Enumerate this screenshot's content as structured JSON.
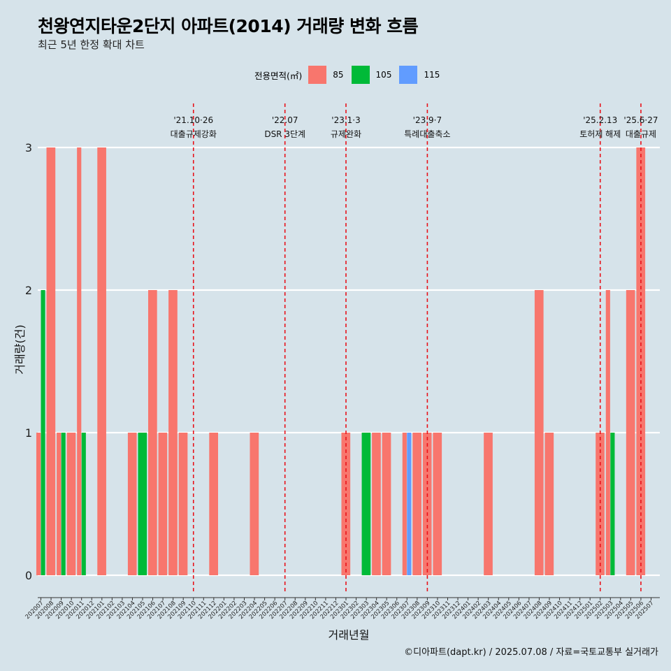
{
  "title": "천왕연지타운2단지 아파트(2014) 거래량 변화 흐름",
  "subtitle": "최근 5년 한정 확대 차트",
  "credit": "©디아파트(dapt.kr) / 2025.07.08 / 자료=국토교통부 실거래가",
  "legend": {
    "title": "전용면적(㎡)",
    "items": [
      {
        "label": "85",
        "color": "#f8766d"
      },
      {
        "label": "105",
        "color": "#00ba38"
      },
      {
        "label": "115",
        "color": "#619cff"
      }
    ]
  },
  "chart_data": {
    "type": "bar",
    "stacking": "dodge",
    "xlabel": "거래년월",
    "ylabel": "거래량(건)",
    "ylim": [
      0,
      3
    ],
    "yticks": [
      0,
      1,
      2,
      3
    ],
    "grid": "horizontal",
    "legend_position": "top",
    "categories": [
      "202007",
      "202008",
      "202009",
      "202010",
      "202011",
      "202012",
      "202101",
      "202102",
      "202103",
      "202104",
      "202105",
      "202106",
      "202107",
      "202108",
      "202109",
      "202110",
      "202111",
      "202112",
      "202201",
      "202202",
      "202203",
      "202204",
      "202205",
      "202206",
      "202207",
      "202208",
      "202209",
      "202210",
      "202211",
      "202212",
      "202301",
      "202302",
      "202303",
      "202304",
      "202305",
      "202306",
      "202307",
      "202308",
      "202309",
      "202310",
      "202311",
      "202312",
      "202401",
      "202402",
      "202403",
      "202404",
      "202405",
      "202406",
      "202407",
      "202408",
      "202409",
      "202410",
      "202411",
      "202412",
      "202501",
      "202502",
      "202503",
      "202504",
      "202505",
      "202506",
      "202507"
    ],
    "bars": [
      {
        "month": "202007",
        "series": "85",
        "value": 1
      },
      {
        "month": "202007",
        "series": "105",
        "value": 2
      },
      {
        "month": "202008",
        "series": "85",
        "value": 3
      },
      {
        "month": "202009",
        "series": "85",
        "value": 1
      },
      {
        "month": "202009",
        "series": "105",
        "value": 1
      },
      {
        "month": "202010",
        "series": "85",
        "value": 1
      },
      {
        "month": "202011",
        "series": "85",
        "value": 3
      },
      {
        "month": "202011",
        "series": "105",
        "value": 1
      },
      {
        "month": "202101",
        "series": "85",
        "value": 3
      },
      {
        "month": "202104",
        "series": "85",
        "value": 1
      },
      {
        "month": "202105",
        "series": "105",
        "value": 1
      },
      {
        "month": "202106",
        "series": "85",
        "value": 2
      },
      {
        "month": "202107",
        "series": "85",
        "value": 1
      },
      {
        "month": "202108",
        "series": "85",
        "value": 2
      },
      {
        "month": "202109",
        "series": "85",
        "value": 1
      },
      {
        "month": "202112",
        "series": "85",
        "value": 1
      },
      {
        "month": "202204",
        "series": "85",
        "value": 1
      },
      {
        "month": "202301",
        "series": "85",
        "value": 1
      },
      {
        "month": "202303",
        "series": "105",
        "value": 1
      },
      {
        "month": "202304",
        "series": "85",
        "value": 1
      },
      {
        "month": "202305",
        "series": "85",
        "value": 1
      },
      {
        "month": "202307",
        "series": "85",
        "value": 1
      },
      {
        "month": "202307",
        "series": "115",
        "value": 1
      },
      {
        "month": "202308",
        "series": "85",
        "value": 1
      },
      {
        "month": "202309",
        "series": "85",
        "value": 1
      },
      {
        "month": "202310",
        "series": "85",
        "value": 1
      },
      {
        "month": "202403",
        "series": "85",
        "value": 1
      },
      {
        "month": "202408",
        "series": "85",
        "value": 2
      },
      {
        "month": "202409",
        "series": "85",
        "value": 1
      },
      {
        "month": "202502",
        "series": "85",
        "value": 1
      },
      {
        "month": "202503",
        "series": "85",
        "value": 2
      },
      {
        "month": "202503",
        "series": "105",
        "value": 1
      },
      {
        "month": "202505",
        "series": "85",
        "value": 2
      },
      {
        "month": "202506",
        "series": "85",
        "value": 3
      }
    ],
    "annotations": [
      {
        "month": "202110",
        "date": "'21.10·26",
        "text": "대출규제강화"
      },
      {
        "month": "202207",
        "date": "'22.07",
        "text": "DSR 3단계"
      },
      {
        "month": "202301",
        "date": "'23.1·3",
        "text": "규제완화"
      },
      {
        "month": "202309",
        "date": "'23.9·7",
        "text": "특례대출축소"
      },
      {
        "month": "202502",
        "date": "'25.2.13",
        "text": "토허제 해제"
      },
      {
        "month": "202506",
        "date": "'25.6·27",
        "text": "대출규제"
      }
    ]
  }
}
